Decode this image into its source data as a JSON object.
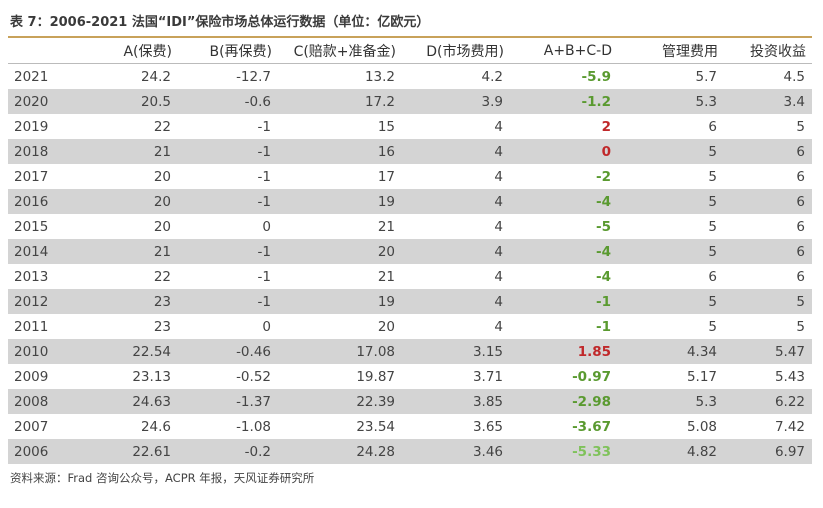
{
  "title": "表 7：2006-2021 法国“IDI”保险市场总体运行数据（单位：亿欧元）",
  "columns": [
    "",
    "A(保费)",
    "B(再保费)",
    "C(赔款+准备金)",
    "D(市场费用)",
    "A+B+C-D",
    "管理费用",
    "投资收益"
  ],
  "rows": [
    {
      "year": "2021",
      "a": "24.2",
      "b": "-12.7",
      "c": "13.2",
      "d": "4.2",
      "net": "-5.9",
      "mgmt": "5.7",
      "inv": "4.5",
      "tone": "green"
    },
    {
      "year": "2020",
      "a": "20.5",
      "b": "-0.6",
      "c": "17.2",
      "d": "3.9",
      "net": "-1.2",
      "mgmt": "5.3",
      "inv": "3.4",
      "tone": "green"
    },
    {
      "year": "2019",
      "a": "22",
      "b": "-1",
      "c": "15",
      "d": "4",
      "net": "2",
      "mgmt": "6",
      "inv": "5",
      "tone": "red"
    },
    {
      "year": "2018",
      "a": "21",
      "b": "-1",
      "c": "16",
      "d": "4",
      "net": "0",
      "mgmt": "5",
      "inv": "6",
      "tone": "red"
    },
    {
      "year": "2017",
      "a": "20",
      "b": "-1",
      "c": "17",
      "d": "4",
      "net": "-2",
      "mgmt": "5",
      "inv": "6",
      "tone": "green"
    },
    {
      "year": "2016",
      "a": "20",
      "b": "-1",
      "c": "19",
      "d": "4",
      "net": "-4",
      "mgmt": "5",
      "inv": "6",
      "tone": "green"
    },
    {
      "year": "2015",
      "a": "20",
      "b": "0",
      "c": "21",
      "d": "4",
      "net": "-5",
      "mgmt": "5",
      "inv": "6",
      "tone": "green"
    },
    {
      "year": "2014",
      "a": "21",
      "b": "-1",
      "c": "20",
      "d": "4",
      "net": "-4",
      "mgmt": "5",
      "inv": "6",
      "tone": "green"
    },
    {
      "year": "2013",
      "a": "22",
      "b": "-1",
      "c": "21",
      "d": "4",
      "net": "-4",
      "mgmt": "6",
      "inv": "6",
      "tone": "green"
    },
    {
      "year": "2012",
      "a": "23",
      "b": "-1",
      "c": "19",
      "d": "4",
      "net": "-1",
      "mgmt": "5",
      "inv": "5",
      "tone": "green"
    },
    {
      "year": "2011",
      "a": "23",
      "b": "0",
      "c": "20",
      "d": "4",
      "net": "-1",
      "mgmt": "5",
      "inv": "5",
      "tone": "green"
    },
    {
      "year": "2010",
      "a": "22.54",
      "b": "-0.46",
      "c": "17.08",
      "d": "3.15",
      "net": "1.85",
      "mgmt": "4.34",
      "inv": "5.47",
      "tone": "red"
    },
    {
      "year": "2009",
      "a": "23.13",
      "b": "-0.52",
      "c": "19.87",
      "d": "3.71",
      "net": "-0.97",
      "mgmt": "5.17",
      "inv": "5.43",
      "tone": "green"
    },
    {
      "year": "2008",
      "a": "24.63",
      "b": "-1.37",
      "c": "22.39",
      "d": "3.85",
      "net": "-2.98",
      "mgmt": "5.3",
      "inv": "6.22",
      "tone": "green"
    },
    {
      "year": "2007",
      "a": "24.6",
      "b": "-1.08",
      "c": "23.54",
      "d": "3.65",
      "net": "-3.67",
      "mgmt": "5.08",
      "inv": "7.42",
      "tone": "green"
    },
    {
      "year": "2006",
      "a": "22.61",
      "b": "-0.2",
      "c": "24.28",
      "d": "3.46",
      "net": "-5.33",
      "mgmt": "4.82",
      "inv": "6.97",
      "tone": "lightgreen"
    }
  ],
  "source": "资料来源：Frad 咨询公众号，ACPR 年报，天风证券研究所",
  "colors": {
    "header_rule": "#c8a25a",
    "shade": "#d4d4d4",
    "positive": "#c0282a",
    "negative": "#5a9a30",
    "negative_light": "#7fc25a"
  }
}
